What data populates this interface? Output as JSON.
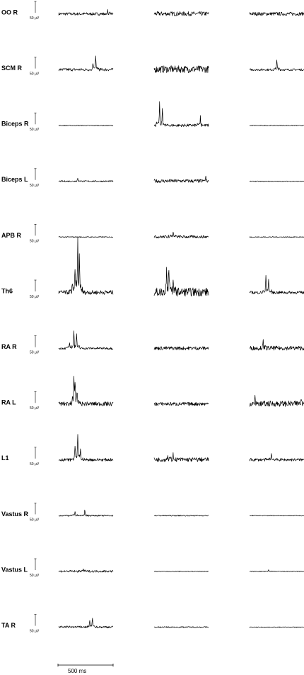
{
  "rows": [
    {
      "label": "OO R",
      "scale_label": "50 μV"
    },
    {
      "label": "SCM R",
      "scale_label": "50 μV"
    },
    {
      "label": "Biceps R",
      "scale_label": "50 μV"
    },
    {
      "label": "Biceps L",
      "scale_label": "50 μV"
    },
    {
      "label": "APB R",
      "scale_label": "50 μV"
    },
    {
      "label": "Th6",
      "scale_label": "50 μV"
    },
    {
      "label": "RA R",
      "scale_label": "50 μV"
    },
    {
      "label": "RA L",
      "scale_label": "50 μV"
    },
    {
      "label": "L1",
      "scale_label": "50 μV"
    },
    {
      "label": "Vastus R",
      "scale_label": "50 μV"
    },
    {
      "label": "Vastus L",
      "scale_label": "50 μV"
    },
    {
      "label": "TA R",
      "scale_label": "50 μV"
    }
  ],
  "time_scale": {
    "label": "500 ms"
  }
}
